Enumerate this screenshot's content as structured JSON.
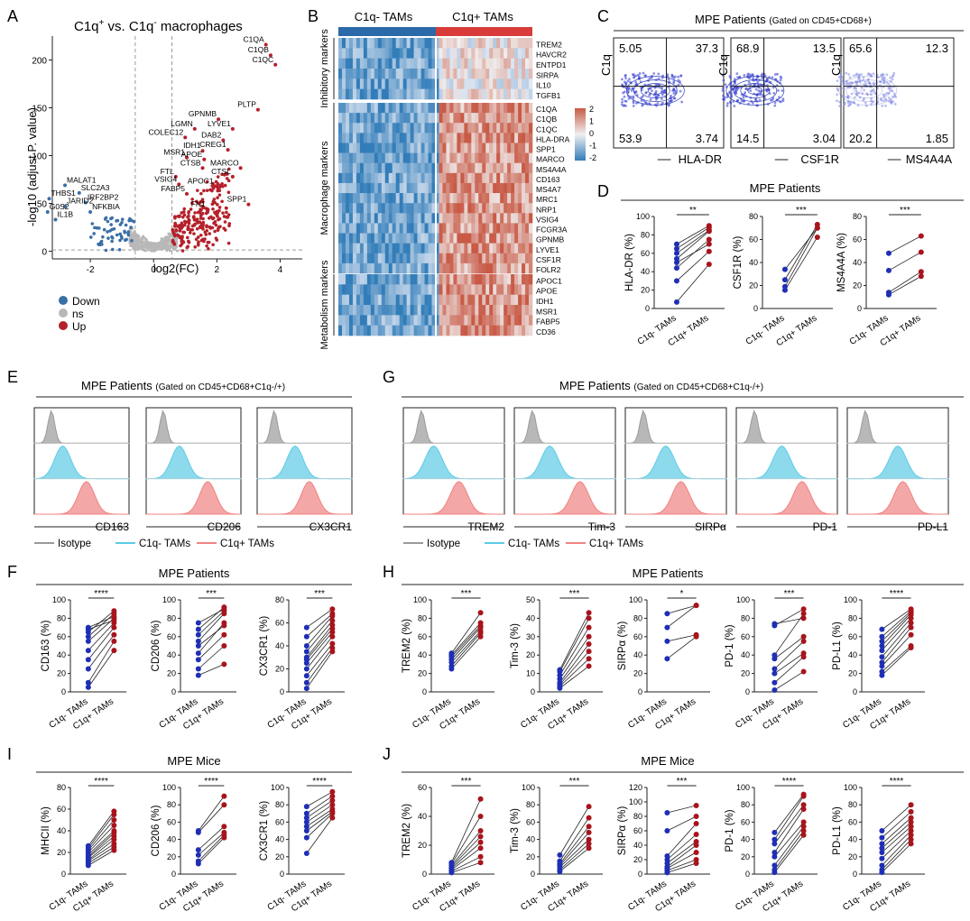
{
  "colors": {
    "down": "#3a6fa6",
    "ns": "#b8b8b8",
    "up": "#b5202a",
    "c1q_neg": "#1f2fb5",
    "c1q_pos": "#a8141c",
    "iso": "#9a9a9a",
    "cyan": "#5ccbe6",
    "red": "#f08282",
    "header_neg": "#2b6aa8",
    "header_pos": "#d93b3b"
  },
  "panelA": {
    "letter": "A",
    "title_main": "C1q",
    "title_sup1": "+",
    "title_mid": " vs. C1q",
    "title_sup2": "-",
    "title_end": " macrophages",
    "ylabel": "-log10 (adjust P. value)",
    "xlabel": "log2(FC)",
    "legend": [
      "Down",
      "ns",
      "Up"
    ],
    "gene_labels": [
      {
        "text": "C1QA",
        "x": 3.55,
        "y": 216
      },
      {
        "text": "C1QB",
        "x": 3.7,
        "y": 205
      },
      {
        "text": "C1QC",
        "x": 3.85,
        "y": 195
      },
      {
        "text": "PLTP",
        "x": 3.3,
        "y": 148
      },
      {
        "text": "GPNMB",
        "x": 2.05,
        "y": 138
      },
      {
        "text": "LYVE1",
        "x": 2.5,
        "y": 128
      },
      {
        "text": "LGMN",
        "x": 1.3,
        "y": 128
      },
      {
        "text": "COLEC12",
        "x": 1.0,
        "y": 119
      },
      {
        "text": "DAB2",
        "x": 2.2,
        "y": 116
      },
      {
        "text": "CREG1",
        "x": 2.35,
        "y": 106
      },
      {
        "text": "IDH1",
        "x": 1.55,
        "y": 105
      },
      {
        "text": "MSR1",
        "x": 1.05,
        "y": 98
      },
      {
        "text": "APOE",
        "x": 1.6,
        "y": 96
      },
      {
        "text": "MARCO",
        "x": 2.75,
        "y": 87
      },
      {
        "text": "CTSB",
        "x": 1.55,
        "y": 87
      },
      {
        "text": "CTSL",
        "x": 2.5,
        "y": 78
      },
      {
        "text": "FTL",
        "x": 0.7,
        "y": 78
      },
      {
        "text": "VSIG4",
        "x": 0.8,
        "y": 70
      },
      {
        "text": "APOC1",
        "x": 1.95,
        "y": 68
      },
      {
        "text": "FABP5",
        "x": 1.05,
        "y": 60
      },
      {
        "text": "FN1",
        "x": 1.7,
        "y": 44
      },
      {
        "text": "SPP1",
        "x": 3.0,
        "y": 49
      },
      {
        "text": "MALAT1",
        "x": -2.8,
        "y": 69
      },
      {
        "text": "SLC2A3",
        "x": -2.35,
        "y": 61
      },
      {
        "text": "THBS1",
        "x": -3.3,
        "y": 55
      },
      {
        "text": "IRF2BP2",
        "x": -2.15,
        "y": 51
      },
      {
        "text": "JARID2",
        "x": -2.8,
        "y": 47
      },
      {
        "text": "NFKBIA",
        "x": -2.0,
        "y": 41
      },
      {
        "text": "G0S2",
        "x": -3.35,
        "y": 41
      },
      {
        "text": "IL1B",
        "x": -3.1,
        "y": 33
      }
    ]
  },
  "panelB": {
    "letter": "B",
    "header_neg": "C1q- TAMs",
    "header_pos": "C1q+ TAMs",
    "groups": [
      "Inhibitory markers",
      "Macrophage markers",
      "Metabolism markers"
    ],
    "genes_inhibitory": [
      "TREM2",
      "HAVCR2",
      "ENTPD1",
      "SIRPA",
      "IL10",
      "TGFB1"
    ],
    "genes_macrophage": [
      "C1QA",
      "C1QB",
      "C1QC",
      "HLA-DRA",
      "SPP1",
      "MARCO",
      "MS4A4A",
      "CD163",
      "MS4A7",
      "MRC1",
      "NRP1",
      "VSIG4",
      "FCGR3A",
      "GPNMB",
      "LYVE1",
      "CSF1R",
      "FOLR2"
    ],
    "genes_metabolism": [
      "APOC1",
      "APOE",
      "IDH1",
      "MSR1",
      "FABP5",
      "CD36"
    ],
    "scale_ticks": [
      "2",
      "1",
      "0",
      "-1",
      "-2"
    ]
  },
  "panelC": {
    "letter": "C",
    "title": "MPE Patients",
    "subtitle": "(Gated on CD45+CD68+)",
    "plots": [
      {
        "xlabel": "HLA-DR",
        "ylabel": "C1q",
        "q": [
          "5.05",
          "37.3",
          "53.9",
          "3.74"
        ]
      },
      {
        "xlabel": "CSF1R",
        "ylabel": "C1q",
        "q": [
          "68.9",
          "13.5",
          "14.5",
          "3.04"
        ]
      },
      {
        "xlabel": "MS4A4A",
        "ylabel": "C1q",
        "q": [
          "65.6",
          "12.3",
          "20.2",
          "1.85"
        ]
      }
    ]
  },
  "panelD": {
    "letter": "D",
    "title": "MPE Patients",
    "plots": [
      {
        "ylabel": "HLA-DR (%)",
        "ymax": 100,
        "ticks": [
          0,
          20,
          40,
          60,
          80,
          100
        ],
        "sig": "**",
        "pairs": [
          [
            7,
            48
          ],
          [
            30,
            62
          ],
          [
            44,
            75
          ],
          [
            50,
            70
          ],
          [
            54,
            84
          ],
          [
            60,
            85
          ],
          [
            65,
            88
          ],
          [
            70,
            90
          ]
        ]
      },
      {
        "ylabel": "CSF1R (%)",
        "ymax": 80,
        "ticks": [
          0,
          20,
          40,
          60,
          80
        ],
        "sig": "***",
        "pairs": [
          [
            16,
            62
          ],
          [
            19,
            70
          ],
          [
            25,
            73
          ],
          [
            34,
            70
          ]
        ]
      },
      {
        "ylabel": "MS4A4A (%)",
        "ymax": 80,
        "ticks": [
          0,
          20,
          40,
          60,
          80
        ],
        "sig": "***",
        "pairs": [
          [
            12,
            28
          ],
          [
            14,
            32
          ],
          [
            33,
            49
          ],
          [
            48,
            63
          ]
        ]
      }
    ]
  },
  "panelE": {
    "letter": "E",
    "title": "MPE Patients",
    "subtitle": "(Gated on CD45+CD68+C1q-/+)",
    "markers": [
      "CD163",
      "CD206",
      "CX3CR1"
    ],
    "legend": [
      "Isotype",
      "C1q- TAMs",
      "C1q+ TAMs"
    ]
  },
  "panelG": {
    "letter": "G",
    "title": "MPE Patients",
    "subtitle": "(Gated on CD45+CD68+C1q-/+)",
    "markers": [
      "TREM2",
      "Tim-3",
      "SIRPα",
      "PD-1",
      "PD-L1"
    ],
    "legend": [
      "Isotype",
      "C1q- TAMs",
      "C1q+ TAMs"
    ]
  },
  "panelF": {
    "letter": "F",
    "title": "MPE Patients",
    "plots": [
      {
        "ylabel": "CD163 (%)",
        "ymax": 100,
        "ticks": [
          0,
          20,
          40,
          60,
          80,
          100
        ],
        "sig": "****",
        "pairs": [
          [
            5,
            45
          ],
          [
            10,
            55
          ],
          [
            25,
            62
          ],
          [
            35,
            70
          ],
          [
            45,
            75
          ],
          [
            55,
            80
          ],
          [
            60,
            85
          ],
          [
            65,
            88
          ],
          [
            68,
            78
          ],
          [
            70,
            82
          ]
        ]
      },
      {
        "ylabel": "CD206 (%)",
        "ymax": 100,
        "ticks": [
          0,
          20,
          40,
          60,
          80,
          100
        ],
        "sig": "***",
        "pairs": [
          [
            18,
            30
          ],
          [
            25,
            50
          ],
          [
            35,
            62
          ],
          [
            42,
            75
          ],
          [
            50,
            72
          ],
          [
            55,
            85
          ],
          [
            62,
            88
          ],
          [
            68,
            92
          ],
          [
            75,
            90
          ]
        ]
      },
      {
        "ylabel": "CX3CR1 (%)",
        "ymax": 80,
        "ticks": [
          0,
          20,
          40,
          60,
          80
        ],
        "sig": "***",
        "pairs": [
          [
            3,
            35
          ],
          [
            8,
            38
          ],
          [
            14,
            42
          ],
          [
            20,
            48
          ],
          [
            25,
            52
          ],
          [
            28,
            55
          ],
          [
            30,
            58
          ],
          [
            35,
            62
          ],
          [
            40,
            66
          ],
          [
            48,
            68
          ],
          [
            56,
            72
          ]
        ]
      }
    ]
  },
  "panelH": {
    "letter": "H",
    "title": "MPE Patients",
    "plots": [
      {
        "ylabel": "TREM2 (%)",
        "ymax": 100,
        "ticks": [
          0,
          20,
          40,
          60,
          80,
          100
        ],
        "sig": "***",
        "pairs": [
          [
            25,
            60
          ],
          [
            28,
            64
          ],
          [
            32,
            66
          ],
          [
            35,
            70
          ],
          [
            38,
            72
          ],
          [
            40,
            75
          ],
          [
            42,
            86
          ]
        ]
      },
      {
        "ylabel": "Tim-3 (%)",
        "ymax": 50,
        "ticks": [
          0,
          10,
          20,
          30,
          40,
          50
        ],
        "sig": "***",
        "pairs": [
          [
            2,
            14
          ],
          [
            3,
            18
          ],
          [
            4,
            22
          ],
          [
            5,
            26
          ],
          [
            7,
            30
          ],
          [
            9,
            35
          ],
          [
            11,
            40
          ],
          [
            12,
            43
          ]
        ]
      },
      {
        "ylabel": "SIRPα (%)",
        "ymax": 100,
        "ticks": [
          0,
          20,
          40,
          60,
          80,
          100
        ],
        "sig": "*",
        "pairs": [
          [
            36,
            60
          ],
          [
            55,
            62
          ],
          [
            70,
            94
          ],
          [
            85,
            94
          ]
        ]
      },
      {
        "ylabel": "PD-1 (%)",
        "ymax": 100,
        "ticks": [
          0,
          20,
          40,
          60,
          80,
          100
        ],
        "sig": "***",
        "pairs": [
          [
            2,
            22
          ],
          [
            10,
            38
          ],
          [
            20,
            42
          ],
          [
            25,
            55
          ],
          [
            36,
            60
          ],
          [
            40,
            85
          ],
          [
            72,
            90
          ],
          [
            74,
            80
          ]
        ]
      },
      {
        "ylabel": "PD-L1 (%)",
        "ymax": 100,
        "ticks": [
          0,
          20,
          40,
          60,
          80,
          100
        ],
        "sig": "****",
        "pairs": [
          [
            18,
            48
          ],
          [
            22,
            50
          ],
          [
            28,
            62
          ],
          [
            32,
            70
          ],
          [
            38,
            75
          ],
          [
            45,
            80
          ],
          [
            50,
            84
          ],
          [
            55,
            86
          ],
          [
            60,
            88
          ],
          [
            68,
            90
          ]
        ]
      }
    ]
  },
  "panelI": {
    "letter": "I",
    "title": "MPE Mice",
    "plots": [
      {
        "ylabel": "MHCII (%)",
        "ymax": 80,
        "ticks": [
          0,
          20,
          40,
          60,
          80
        ],
        "sig": "****",
        "pairs": [
          [
            8,
            22
          ],
          [
            10,
            25
          ],
          [
            12,
            28
          ],
          [
            13,
            32
          ],
          [
            15,
            35
          ],
          [
            16,
            38
          ],
          [
            18,
            40
          ],
          [
            20,
            45
          ],
          [
            22,
            50
          ],
          [
            24,
            55
          ],
          [
            26,
            58
          ]
        ]
      },
      {
        "ylabel": "CD206 (%)",
        "ymax": 100,
        "ticks": [
          0,
          20,
          40,
          60,
          80,
          100
        ],
        "sig": "****",
        "pairs": [
          [
            12,
            42
          ],
          [
            15,
            45
          ],
          [
            22,
            48
          ],
          [
            28,
            55
          ],
          [
            48,
            80
          ],
          [
            50,
            90
          ]
        ]
      },
      {
        "ylabel": "CX3CR1 (%)",
        "ymax": 100,
        "ticks": [
          0,
          20,
          40,
          60,
          80,
          100
        ],
        "sig": "****",
        "pairs": [
          [
            24,
            65
          ],
          [
            42,
            70
          ],
          [
            50,
            72
          ],
          [
            55,
            75
          ],
          [
            60,
            80
          ],
          [
            65,
            85
          ],
          [
            70,
            90
          ],
          [
            78,
            95
          ]
        ]
      }
    ]
  },
  "panelJ": {
    "letter": "J",
    "title": "MPE Mice",
    "plots": [
      {
        "ylabel": "TREM2 (%)",
        "ymax": 60,
        "ticks": [
          0,
          20,
          40,
          60
        ],
        "sig": "***",
        "pairs": [
          [
            1,
            8
          ],
          [
            2,
            12
          ],
          [
            3,
            18
          ],
          [
            4,
            22
          ],
          [
            5,
            26
          ],
          [
            6,
            30
          ],
          [
            7,
            40
          ],
          [
            8,
            52
          ]
        ]
      },
      {
        "ylabel": "Tim-3 (%)",
        "ymax": 100,
        "ticks": [
          0,
          20,
          40,
          60,
          80,
          100
        ],
        "sig": "***",
        "pairs": [
          [
            3,
            30
          ],
          [
            5,
            35
          ],
          [
            8,
            40
          ],
          [
            10,
            48
          ],
          [
            12,
            55
          ],
          [
            15,
            65
          ],
          [
            22,
            78
          ]
        ]
      },
      {
        "ylabel": "SIRPα (%)",
        "ymax": 120,
        "ticks": [
          0,
          20,
          40,
          60,
          80,
          100,
          120
        ],
        "sig": "***",
        "pairs": [
          [
            2,
            15
          ],
          [
            5,
            20
          ],
          [
            8,
            30
          ],
          [
            10,
            40
          ],
          [
            15,
            45
          ],
          [
            20,
            55
          ],
          [
            25,
            70
          ],
          [
            60,
            80
          ],
          [
            85,
            95
          ]
        ]
      },
      {
        "ylabel": "PD-1 (%)",
        "ymax": 100,
        "ticks": [
          0,
          20,
          40,
          60,
          80,
          100
        ],
        "sig": "****",
        "pairs": [
          [
            2,
            45
          ],
          [
            5,
            50
          ],
          [
            10,
            55
          ],
          [
            20,
            60
          ],
          [
            25,
            75
          ],
          [
            35,
            80
          ],
          [
            40,
            90
          ],
          [
            48,
            92
          ]
        ]
      },
      {
        "ylabel": "PD-L1 (%)",
        "ymax": 100,
        "ticks": [
          0,
          20,
          40,
          60,
          80,
          100
        ],
        "sig": "****",
        "pairs": [
          [
            2,
            35
          ],
          [
            5,
            40
          ],
          [
            10,
            45
          ],
          [
            18,
            50
          ],
          [
            25,
            55
          ],
          [
            30,
            60
          ],
          [
            35,
            65
          ],
          [
            42,
            72
          ],
          [
            50,
            80
          ]
        ]
      }
    ]
  },
  "xcat": {
    "neg": "C1q- TAMs",
    "pos": "C1q+ TAMs"
  }
}
